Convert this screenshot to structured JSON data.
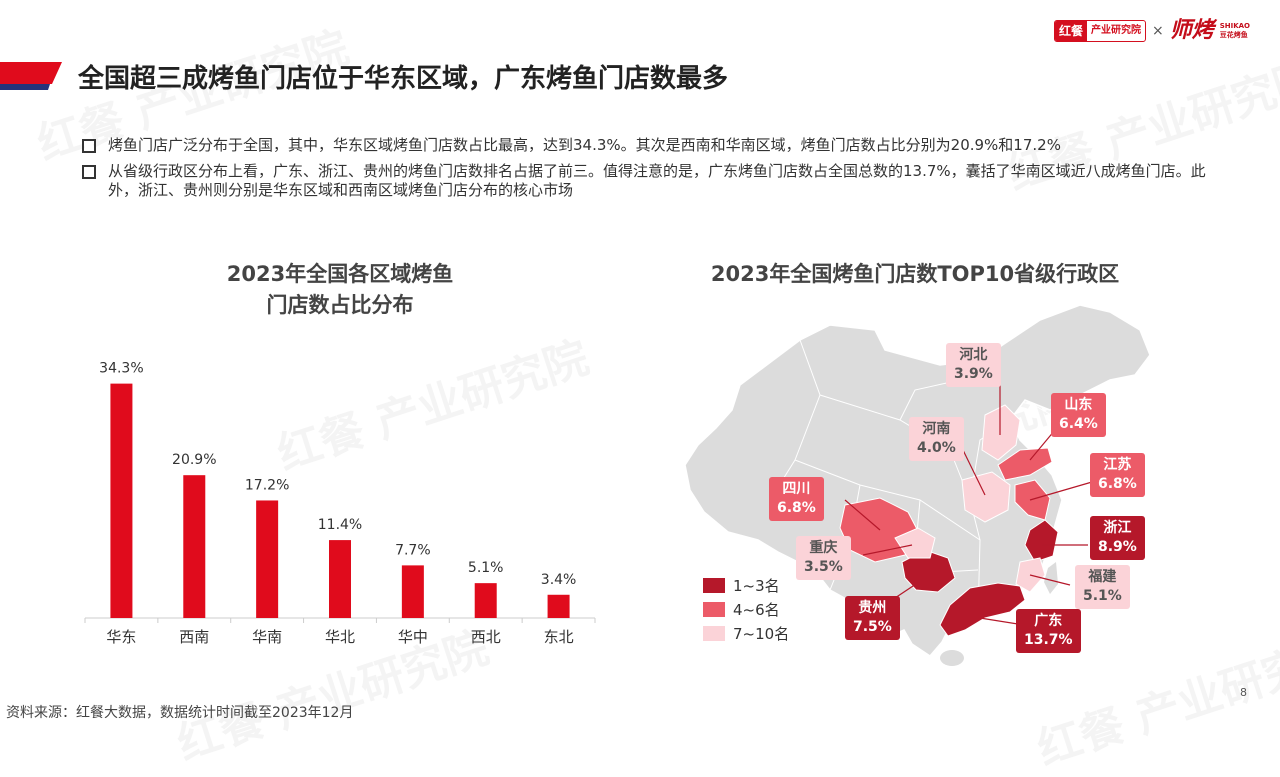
{
  "brand": {
    "logo_red": "红餐",
    "logo_text": "产业研究院",
    "separator": "×",
    "partner_name": "师烤",
    "partner_sub1": "SHIKAO",
    "partner_sub2": "豆花烤鱼"
  },
  "watermark": {
    "text": "红餐 产业研究院"
  },
  "page": {
    "title": "全国超三成烤鱼门店位于华东区域，广东烤鱼门店数最多",
    "bullets": [
      "烤鱼门店广泛分布于全国，其中，华东区域烤鱼门店数占比最高，达到34.3%。其次是西南和华南区域，烤鱼门店数占比分别为20.9%和17.2%",
      "从省级行政区分布上看，广东、浙江、贵州的烤鱼门店数排名占据了前三。值得注意的是，广东烤鱼门店数占全国总数的13.7%，囊括了华南区域近八成烤鱼门店。此外，浙江、贵州则分别是华东区域和西南区域烤鱼门店分布的核心市场"
    ],
    "source": "资料来源：红餐大数据，数据统计时间截至2023年12月",
    "page_number": "8"
  },
  "colors": {
    "accent_red": "#e00b1c",
    "rank1": "#b5182a",
    "rank2": "#ec5b68",
    "rank3": "#fbd3d8",
    "map_base": "#dcdcdc"
  },
  "chart_data": [
    {
      "type": "bar",
      "title_line1": "2023年全国各区域烤鱼",
      "title_line2": "门店数占比分布",
      "categories": [
        "华东",
        "西南",
        "华南",
        "华北",
        "华中",
        "西北",
        "东北"
      ],
      "values": [
        34.3,
        20.9,
        17.2,
        11.4,
        7.7,
        5.1,
        3.4
      ],
      "value_labels": [
        "34.3%",
        "20.9%",
        "17.2%",
        "11.4%",
        "7.7%",
        "5.1%",
        "3.4%"
      ],
      "ylim": [
        0,
        36
      ],
      "grid": false,
      "bar_color": "#e00b1c"
    },
    {
      "type": "map",
      "title": "2023年全国烤鱼门店数TOP10省级行政区",
      "provinces": [
        {
          "name": "广东",
          "value": "13.7%",
          "rank_group": "1~3名"
        },
        {
          "name": "浙江",
          "value": "8.9%",
          "rank_group": "1~3名"
        },
        {
          "name": "贵州",
          "value": "7.5%",
          "rank_group": "1~3名"
        },
        {
          "name": "江苏",
          "value": "6.8%",
          "rank_group": "4~6名"
        },
        {
          "name": "四川",
          "value": "6.8%",
          "rank_group": "4~6名"
        },
        {
          "name": "山东",
          "value": "6.4%",
          "rank_group": "4~6名"
        },
        {
          "name": "福建",
          "value": "5.1%",
          "rank_group": "7~10名"
        },
        {
          "name": "河南",
          "value": "4.0%",
          "rank_group": "7~10名"
        },
        {
          "name": "河北",
          "value": "3.9%",
          "rank_group": "7~10名"
        },
        {
          "name": "重庆",
          "value": "3.5%",
          "rank_group": "7~10名"
        }
      ],
      "legend": [
        "1~3名",
        "4~6名",
        "7~10名"
      ]
    }
  ]
}
